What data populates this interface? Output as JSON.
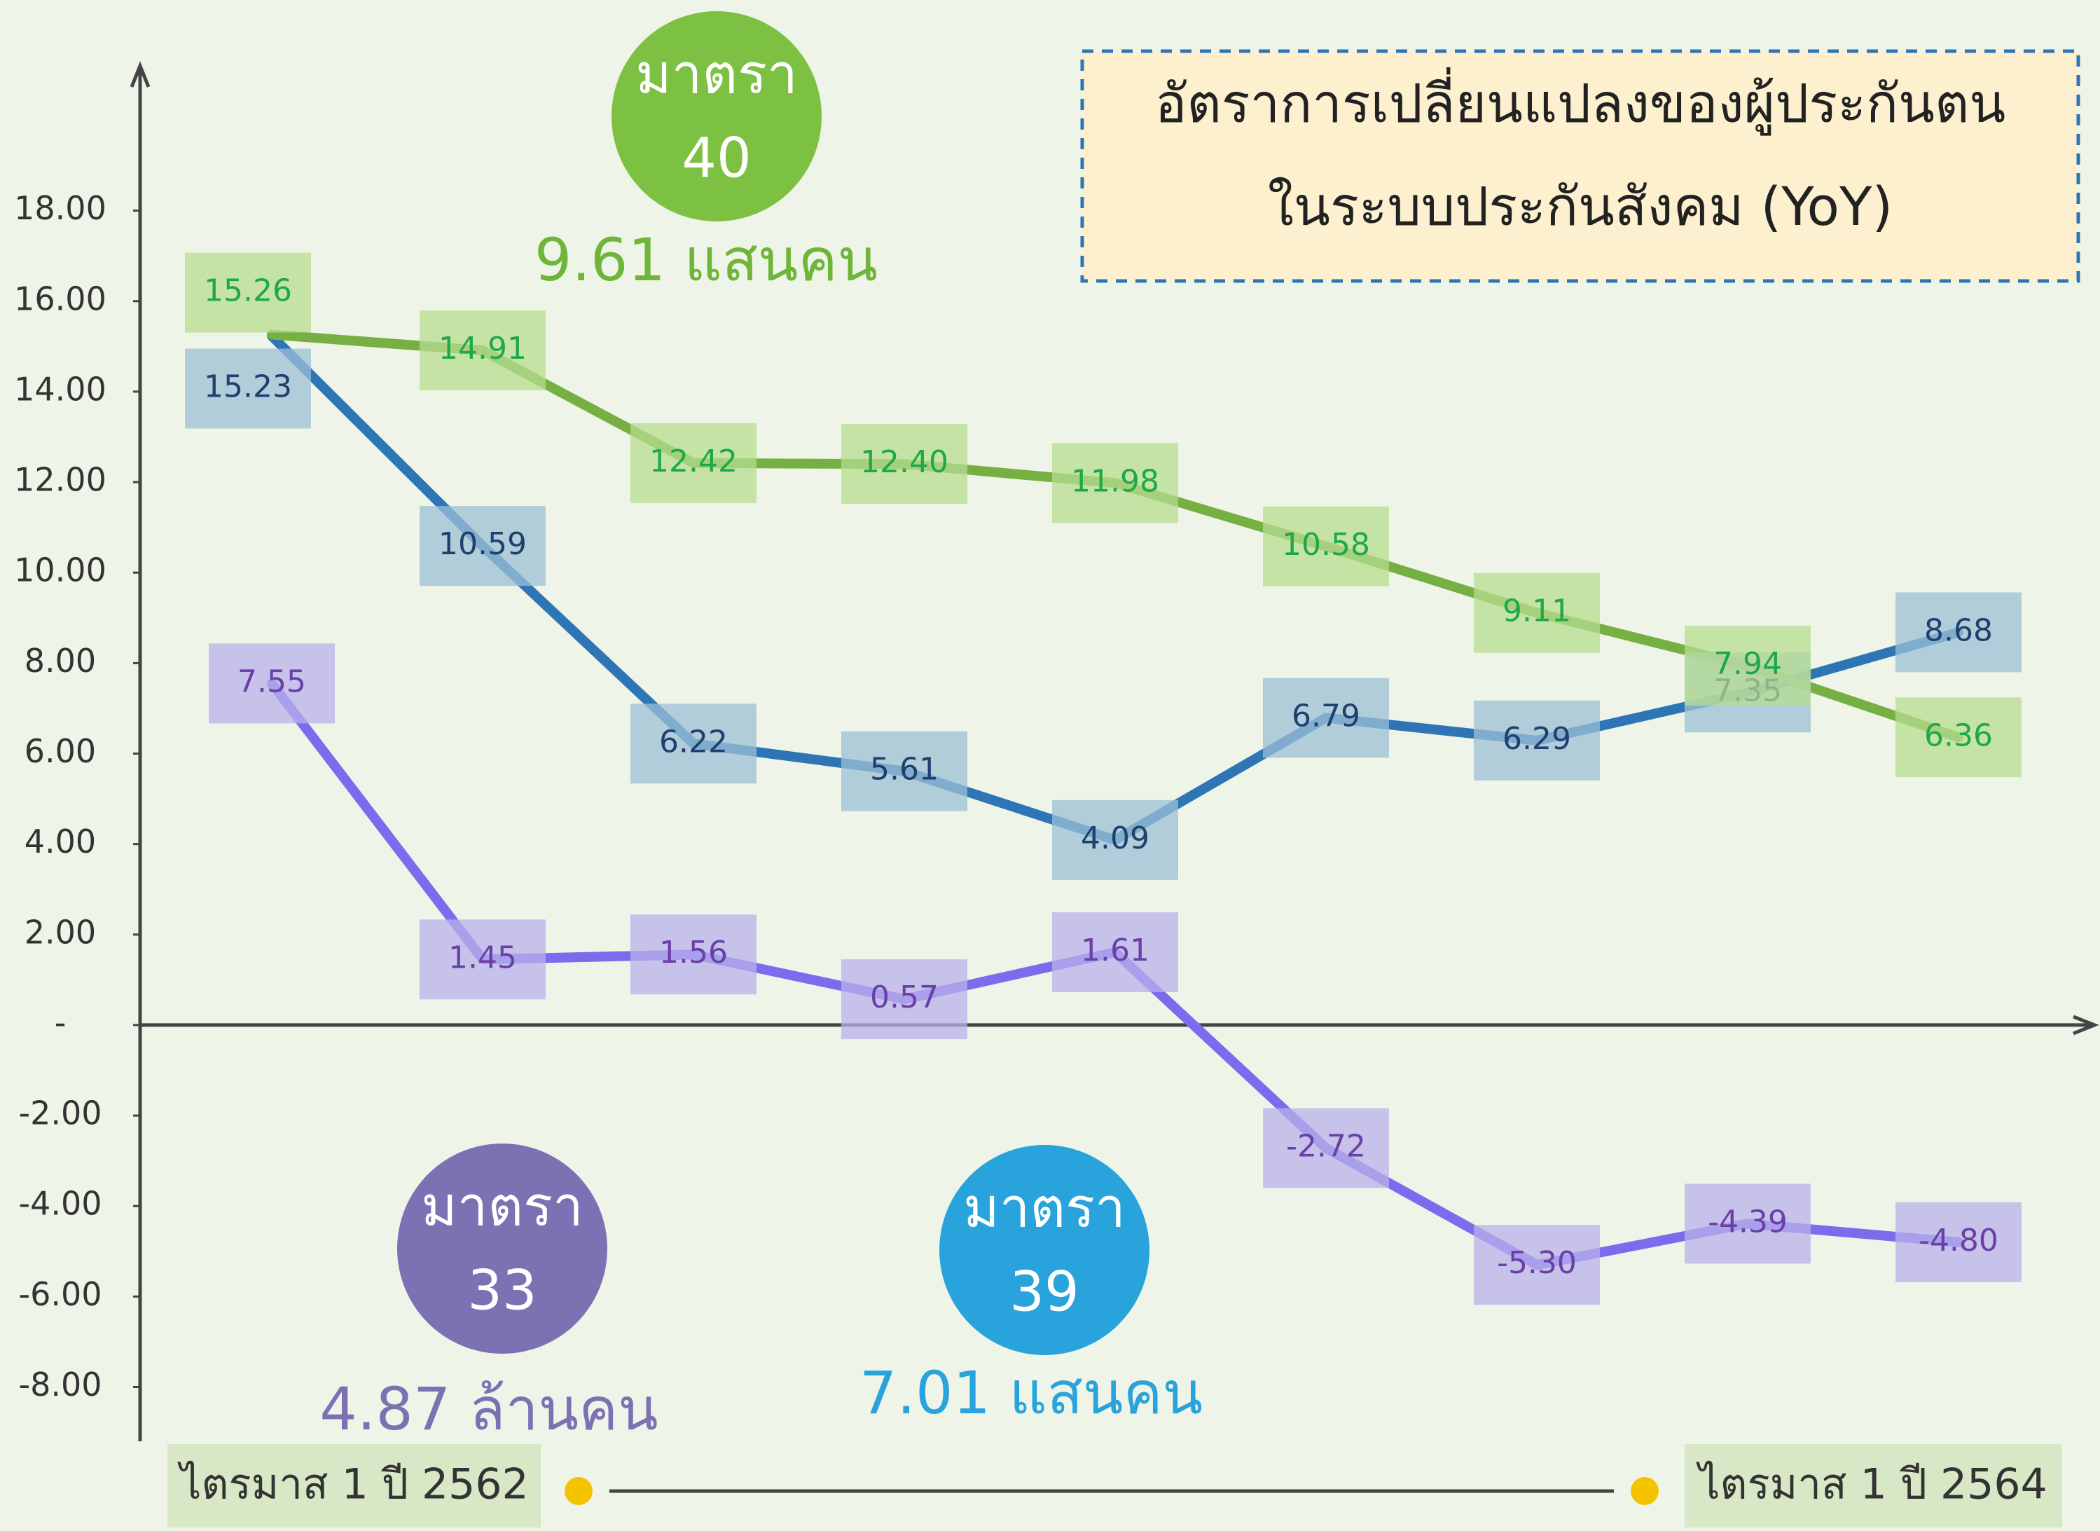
{
  "chart_data": {
    "type": "line",
    "title": [
      "อัตราการเปลี่ยนแปลงของผู้ประกันตน",
      "ในระบบประกันสังคม (YoY)"
    ],
    "categories": [
      null,
      null,
      null,
      null,
      null,
      null,
      null,
      null,
      null
    ],
    "series": [
      {
        "color": "#76b043",
        "label_color": "#1fa84a",
        "box_color": "#b7dc8f",
        "values": [
          15.26,
          14.91,
          12.42,
          12.4,
          11.98,
          10.58,
          9.11,
          7.94,
          6.36
        ],
        "value_labels": [
          "15.26",
          "14.91",
          "12.42",
          "12.40",
          "11.98",
          "10.58",
          "9.11",
          "7.94",
          "6.36"
        ]
      },
      {
        "color": "#2e75b6",
        "label_color": "#1f3f6e",
        "box_color": "#9cbfd6",
        "values": [
          15.23,
          10.59,
          6.22,
          5.61,
          4.09,
          6.79,
          6.29,
          7.35,
          8.68
        ],
        "value_labels": [
          "15.23",
          "10.59",
          "6.22",
          "5.61",
          "4.09",
          "6.79",
          "6.29",
          "7.35",
          "8.68"
        ]
      },
      {
        "color": "#7b6cee",
        "label_color": "#6a3fa8",
        "box_color": "#b8b0ea",
        "values": [
          7.55,
          1.45,
          1.56,
          0.57,
          1.61,
          -2.72,
          -5.3,
          -4.39,
          -4.8
        ],
        "value_labels": [
          "7.55",
          "1.45",
          "1.56",
          "0.57",
          "1.61",
          "-2.72",
          "-5.30",
          "-4.39",
          "-4.80"
        ]
      }
    ],
    "ylim": [
      -9.2,
      21.2
    ],
    "yticks": [
      {
        "value": 18,
        "label": "18.00"
      },
      {
        "value": 16,
        "label": "16.00"
      },
      {
        "value": 14,
        "label": "14.00"
      },
      {
        "value": 12,
        "label": "12.00"
      },
      {
        "value": 10,
        "label": "10.00"
      },
      {
        "value": 8,
        "label": "8.00"
      },
      {
        "value": 6,
        "label": "6.00"
      },
      {
        "value": 4,
        "label": "4.00"
      },
      {
        "value": 2,
        "label": "2.00"
      },
      {
        "value": 0,
        "label": "-"
      },
      {
        "value": -2,
        "label": "-2.00"
      },
      {
        "value": -4,
        "label": "-4.00"
      },
      {
        "value": -6,
        "label": "-6.00"
      },
      {
        "value": -8,
        "label": "-8.00"
      }
    ],
    "badges": [
      {
        "line1": "มาตรา",
        "line2": "40",
        "count": "9.61 แสนคน",
        "color": "#7dc142",
        "count_color": "#6fb53a"
      },
      {
        "line1": "มาตรา",
        "line2": "33",
        "count": "4.87 ล้านคน",
        "color": "#7b71b3",
        "count_color": "#7b71b3"
      },
      {
        "line1": "มาตรา",
        "line2": "39",
        "count": "7.01 แสนคน",
        "color": "#29a3dc",
        "count_color": "#29a3dc"
      }
    ],
    "period_start": "ไตรมาส 1 ปี 2562",
    "period_end": "ไตรมาส 1 ปี 2564"
  }
}
